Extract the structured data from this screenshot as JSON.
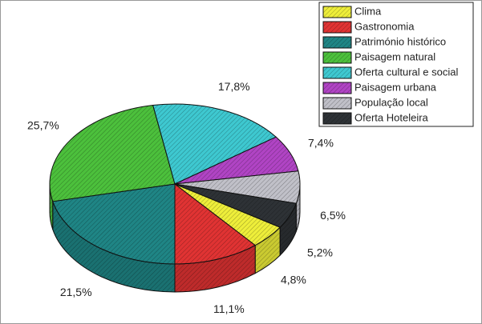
{
  "chart_data": {
    "type": "pie",
    "categories": [
      "Clima",
      "Gastronomia",
      "Património histórico",
      "Paisagem natural",
      "Oferta cultural e social",
      "Paisagem urbana",
      "População local",
      "Oferta Hoteleira"
    ],
    "values": [
      4.8,
      11.1,
      21.5,
      25.7,
      17.8,
      7.4,
      6.5,
      5.2
    ],
    "value_labels": [
      "4,8%",
      "11,1%",
      "21,5%",
      "25,7%",
      "17,8%",
      "7,4%",
      "6,5%",
      "5,2%"
    ],
    "colors": [
      "#eeee3a",
      "#e03333",
      "#1f8585",
      "#4cc03c",
      "#3ec8d0",
      "#b044c4",
      "#c0c0c8",
      "#2e3236"
    ],
    "legend": "top-right"
  }
}
